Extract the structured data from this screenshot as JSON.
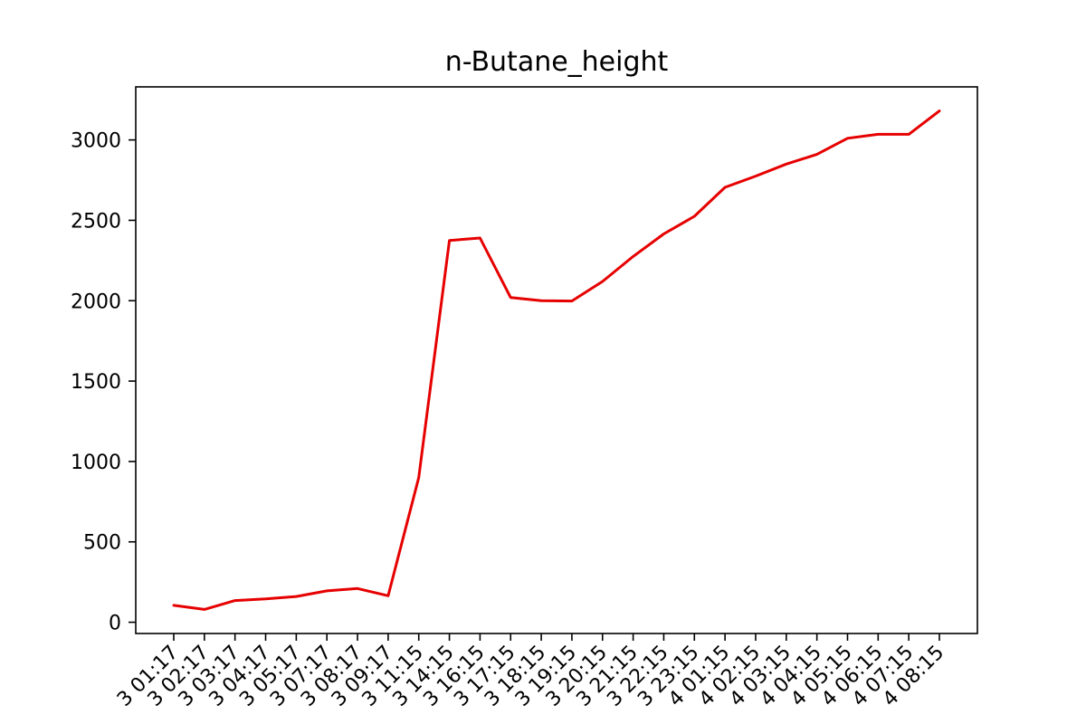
{
  "chart_data": {
    "type": "line",
    "title": "n-Butane_height",
    "xlabel": "",
    "ylabel": "",
    "x": [
      "3 01:17",
      "3 02:17",
      "3 03:17",
      "3 04:17",
      "3 05:17",
      "3 07:17",
      "3 08:17",
      "3 09:17",
      "3 11:15",
      "3 14:15",
      "3 16:15",
      "3 17:15",
      "3 18:15",
      "3 19:15",
      "3 20:15",
      "3 21:15",
      "3 22:15",
      "3 23:15",
      "4 01:15",
      "4 02:15",
      "4 03:15",
      "4 04:15",
      "4 05:15",
      "4 06:15",
      "4 07:15",
      "4 08:15"
    ],
    "series": [
      {
        "color": "#e60000",
        "values": [
          105,
          80,
          135,
          145,
          160,
          195,
          210,
          165,
          900,
          2375,
          2390,
          2020,
          2000,
          1998,
          2120,
          2275,
          2415,
          2525,
          2705,
          2775,
          2850,
          2910,
          3010,
          3035,
          3035,
          3180
        ]
      }
    ],
    "ylim": [
      -70,
      3330
    ],
    "yticks": [
      0,
      500,
      1000,
      1500,
      2000,
      2500,
      3000
    ],
    "grid": false,
    "legend": "none"
  }
}
